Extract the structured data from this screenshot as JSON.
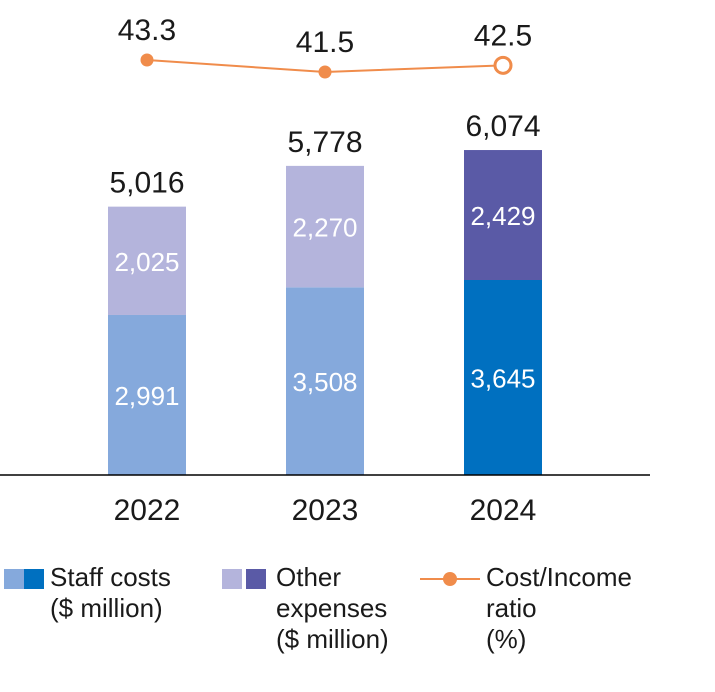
{
  "chart_data": {
    "type": "bar",
    "categories": [
      "2022",
      "2023",
      "2024"
    ],
    "series": [
      {
        "name": "Staff costs ($ million)",
        "values": [
          2991,
          3508,
          3645
        ]
      },
      {
        "name": "Other expenses ($ million)",
        "values": [
          2025,
          2270,
          2429
        ]
      }
    ],
    "totals": [
      5016,
      5778,
      6074
    ],
    "line_series": {
      "name": "Cost/Income ratio (%)",
      "values": [
        43.3,
        41.5,
        42.5
      ]
    },
    "value_labels": {
      "staff": [
        "2,991",
        "3,508",
        "3,645"
      ],
      "other": [
        "2,025",
        "2,270",
        "2,429"
      ],
      "totals": [
        "5,016",
        "5,778",
        "6,074"
      ],
      "ratio": [
        "43.3",
        "41.5",
        "42.5"
      ]
    },
    "ylim": [
      0,
      6500
    ],
    "stacked": true,
    "highlight_last_category": true,
    "colors": {
      "staff_light": "#85a9dc",
      "staff_dark": "#0070c0",
      "other_light": "#b4b4dc",
      "other_dark": "#5a5aa6",
      "ratio_line": "#f08c4b",
      "axis": "#000000"
    }
  },
  "legend": {
    "staff": {
      "line1": "Staff costs",
      "line2": "($ million)"
    },
    "other": {
      "line1": "Other",
      "line2": "expenses",
      "line3": "($ million)"
    },
    "ratio": {
      "line1": "Cost/Income",
      "line2": "ratio",
      "line3": "(%)"
    }
  }
}
